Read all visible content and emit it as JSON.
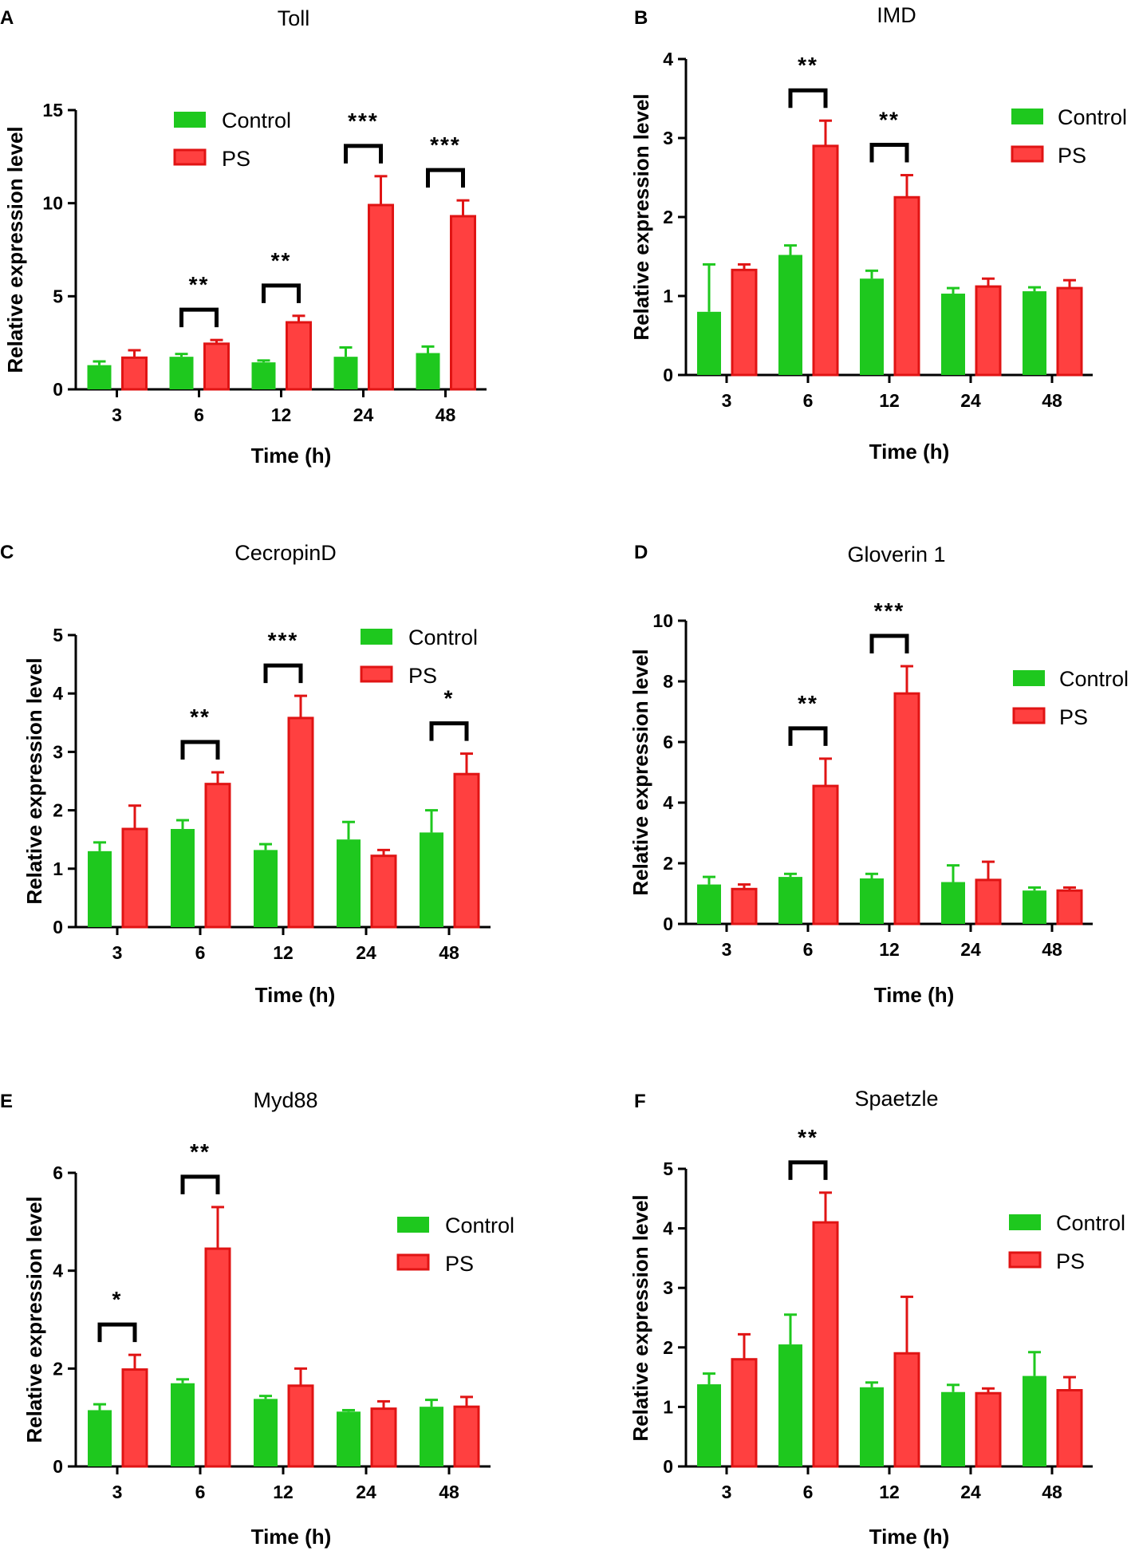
{
  "colors": {
    "control": "#1ec81e",
    "ps_fill": "#ff4040",
    "ps_edge": "#e01414",
    "axis": "#000000"
  },
  "chart_data": [
    {
      "panel": "A",
      "type": "bar",
      "title": "Toll",
      "xlabel": "Time (h)",
      "ylabel": "Relative expression level",
      "categories": [
        "3",
        "6",
        "12",
        "24",
        "48"
      ],
      "ylim": [
        0,
        15
      ],
      "yticks": [
        0,
        5,
        10,
        15
      ],
      "series": [
        {
          "name": "Control",
          "values": [
            1.3,
            1.75,
            1.45,
            1.75,
            1.95
          ],
          "errors": [
            0.2,
            0.15,
            0.1,
            0.5,
            0.35
          ]
        },
        {
          "name": "PS",
          "values": [
            1.7,
            2.45,
            3.6,
            9.9,
            9.3
          ],
          "errors": [
            0.4,
            0.2,
            0.35,
            1.55,
            0.85
          ]
        }
      ],
      "significance": [
        {
          "category": "6",
          "label": "**"
        },
        {
          "category": "12",
          "label": "**"
        },
        {
          "category": "24",
          "label": "***"
        },
        {
          "category": "48",
          "label": "***"
        }
      ],
      "legend": "top-center"
    },
    {
      "panel": "B",
      "type": "bar",
      "title": "IMD",
      "xlabel": "Time (h)",
      "ylabel": "Relative expression level",
      "categories": [
        "3",
        "6",
        "12",
        "24",
        "48"
      ],
      "ylim": [
        0,
        4
      ],
      "yticks": [
        0,
        1,
        2,
        3,
        4
      ],
      "series": [
        {
          "name": "Control",
          "values": [
            0.8,
            1.52,
            1.22,
            1.03,
            1.06
          ],
          "errors": [
            0.6,
            0.12,
            0.1,
            0.07,
            0.05
          ]
        },
        {
          "name": "PS",
          "values": [
            1.33,
            2.9,
            2.25,
            1.12,
            1.1
          ],
          "errors": [
            0.07,
            0.32,
            0.28,
            0.1,
            0.1
          ]
        }
      ],
      "significance": [
        {
          "category": "6",
          "label": "**"
        },
        {
          "category": "12",
          "label": "**"
        }
      ],
      "legend": "top-right"
    },
    {
      "panel": "C",
      "type": "bar",
      "title": "CecropinD",
      "xlabel": "Time (h)",
      "ylabel": "Relative expression level",
      "categories": [
        "3",
        "6",
        "12",
        "24",
        "48"
      ],
      "ylim": [
        0,
        5
      ],
      "yticks": [
        0,
        1,
        2,
        3,
        4,
        5
      ],
      "series": [
        {
          "name": "Control",
          "values": [
            1.3,
            1.68,
            1.32,
            1.5,
            1.62
          ],
          "errors": [
            0.15,
            0.15,
            0.1,
            0.3,
            0.38
          ]
        },
        {
          "name": "PS",
          "values": [
            1.68,
            2.45,
            3.58,
            1.22,
            2.62
          ],
          "errors": [
            0.4,
            0.2,
            0.38,
            0.1,
            0.35
          ]
        }
      ],
      "significance": [
        {
          "category": "6",
          "label": "**"
        },
        {
          "category": "12",
          "label": "***"
        },
        {
          "category": "48",
          "label": "*"
        }
      ],
      "legend": "top-right"
    },
    {
      "panel": "D",
      "type": "bar",
      "title": "Gloverin 1",
      "xlabel": "Time (h)",
      "ylabel": "Relative expression level",
      "categories": [
        "3",
        "6",
        "12",
        "24",
        "48"
      ],
      "ylim": [
        0,
        10
      ],
      "yticks": [
        0,
        2,
        4,
        6,
        8,
        10
      ],
      "series": [
        {
          "name": "Control",
          "values": [
            1.3,
            1.55,
            1.5,
            1.38,
            1.1
          ],
          "errors": [
            0.25,
            0.1,
            0.15,
            0.55,
            0.1
          ]
        },
        {
          "name": "PS",
          "values": [
            1.15,
            4.55,
            7.6,
            1.45,
            1.1
          ],
          "errors": [
            0.15,
            0.9,
            0.9,
            0.6,
            0.1
          ]
        }
      ],
      "significance": [
        {
          "category": "6",
          "label": "**"
        },
        {
          "category": "12",
          "label": "***"
        }
      ],
      "legend": "top-right"
    },
    {
      "panel": "E",
      "type": "bar",
      "title": "Myd88",
      "xlabel": "Time (h)",
      "ylabel": "Relative expression level",
      "categories": [
        "3",
        "6",
        "12",
        "24",
        "48"
      ],
      "ylim": [
        0,
        6
      ],
      "yticks": [
        0,
        2,
        4,
        6
      ],
      "series": [
        {
          "name": "Control",
          "values": [
            1.15,
            1.7,
            1.38,
            1.12,
            1.22
          ],
          "errors": [
            0.12,
            0.08,
            0.06,
            0.03,
            0.14
          ]
        },
        {
          "name": "PS",
          "values": [
            1.98,
            4.45,
            1.65,
            1.18,
            1.22
          ],
          "errors": [
            0.3,
            0.85,
            0.35,
            0.15,
            0.2
          ]
        }
      ],
      "significance": [
        {
          "category": "3",
          "label": "*"
        },
        {
          "category": "6",
          "label": "**"
        }
      ],
      "legend": "top-right"
    },
    {
      "panel": "F",
      "type": "bar",
      "title": "Spaetzle",
      "xlabel": "Time (h)",
      "ylabel": "Relative expression level",
      "categories": [
        "3",
        "6",
        "12",
        "24",
        "48"
      ],
      "ylim": [
        0,
        5
      ],
      "yticks": [
        0,
        1,
        2,
        3,
        4,
        5
      ],
      "series": [
        {
          "name": "Control",
          "values": [
            1.38,
            2.05,
            1.33,
            1.25,
            1.52
          ],
          "errors": [
            0.18,
            0.5,
            0.08,
            0.12,
            0.4
          ]
        },
        {
          "name": "PS",
          "values": [
            1.8,
            4.1,
            1.9,
            1.23,
            1.28
          ],
          "errors": [
            0.42,
            0.5,
            0.95,
            0.08,
            0.22
          ]
        }
      ],
      "significance": [
        {
          "category": "6",
          "label": "**"
        }
      ],
      "legend": "top-right"
    }
  ]
}
